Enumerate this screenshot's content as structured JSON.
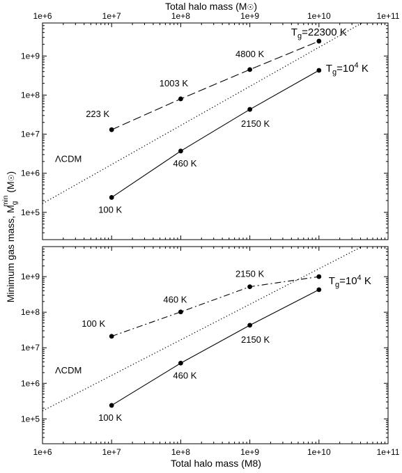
{
  "figure": {
    "top_axis_title": "Total halo mass (M",
    "bottom_axis_title": "Total halo mass (M8)",
    "y_axis_title_a": "Minimum gas mass, M",
    "y_axis_title_sub": "g",
    "y_axis_title_sup": "min",
    "y_axis_title_b": " (M",
    "y_axis_title_c": ")"
  },
  "chart_data": [
    {
      "type": "line",
      "panel": "top",
      "x_scale": "log",
      "y_scale": "log",
      "xlim": [
        1000000.0,
        100000000000.0
      ],
      "ylim": [
        20000.0,
        7000000000.0
      ],
      "x_ticks": [
        "1e+6",
        "1e+7",
        "1e+8",
        "1e+9",
        "1e+10",
        "1e+11"
      ],
      "y_ticks": [
        "1e+5",
        "1e+6",
        "1e+7",
        "1e+8",
        "1e+9"
      ],
      "series": [
        {
          "style": "dashed",
          "x": [
            10000000.0,
            100000000.0,
            1000000000.0,
            10000000000.0
          ],
          "y": [
            13000000.0,
            80000000.0,
            450000000.0,
            2400000000.0
          ],
          "point_labels": [
            "223 K",
            "1003 K",
            "4800 K",
            ""
          ],
          "end_label": {
            "main": "T",
            "sub": "g",
            "rest": "=22300 K"
          }
        },
        {
          "style": "solid",
          "x": [
            10000000.0,
            100000000.0,
            1000000000.0,
            10000000000.0
          ],
          "y": [
            240000.0,
            3700000.0,
            43000000.0,
            430000000.0
          ],
          "point_labels": [
            "100 K",
            "460 K",
            "2150 K",
            ""
          ],
          "end_label": {
            "main": "T",
            "sub": "g",
            "rest": "=10",
            "sup": "4",
            "tail": " K"
          }
        },
        {
          "style": "dotted",
          "name": "ΛCDM",
          "x": [
            1000000.0,
            100000000000.0
          ],
          "y": [
            167000.0,
            16700000000.0
          ]
        }
      ]
    },
    {
      "type": "line",
      "panel": "bottom",
      "x_scale": "log",
      "y_scale": "log",
      "xlim": [
        1000000.0,
        100000000000.0
      ],
      "ylim": [
        20000.0,
        7000000000.0
      ],
      "x_ticks": [
        "1e+6",
        "1e+7",
        "1e+8",
        "1e+9",
        "1e+10",
        "1e+11"
      ],
      "y_ticks": [
        "1e+5",
        "1e+6",
        "1e+7",
        "1e+8",
        "1e+9"
      ],
      "series": [
        {
          "style": "dashdot",
          "x": [
            10000000.0,
            100000000.0,
            1000000000.0,
            10000000000.0
          ],
          "y": [
            21000000.0,
            102000000.0,
            520000000.0,
            1000000000.0
          ],
          "point_labels": [
            "100 K",
            "460 K",
            "2150 K",
            ""
          ]
        },
        {
          "style": "solid",
          "x": [
            10000000.0,
            100000000.0,
            1000000000.0,
            10000000000.0
          ],
          "y": [
            240000.0,
            3700000.0,
            43000000.0,
            430000000.0
          ],
          "point_labels": [
            "100 K",
            "460 K",
            "2150 K",
            ""
          ],
          "end_label": {
            "main": "T",
            "sub": "g",
            "rest": "=10",
            "sup": "4",
            "tail": " K"
          }
        },
        {
          "style": "dotted",
          "name": "ΛCDM",
          "x": [
            1000000.0,
            100000000000.0
          ],
          "y": [
            167000.0,
            16700000000.0
          ]
        }
      ]
    }
  ]
}
